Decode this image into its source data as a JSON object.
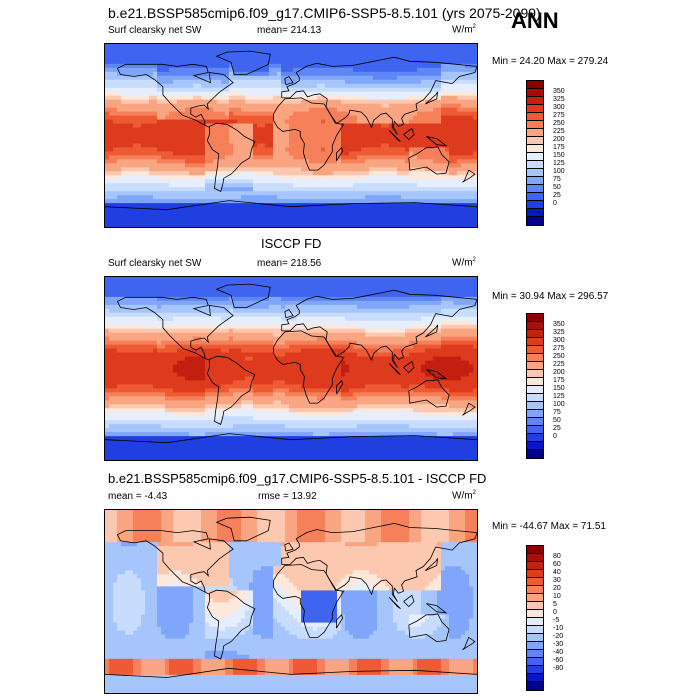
{
  "header": {
    "title": "b.e21.BSSP585cmip6.f09_g17.CMIP6-SSP5-8.5.101 (yrs 2075-2099)",
    "season": "ANN"
  },
  "panels": [
    {
      "left_label": "Surf clearsky net SW",
      "center_label": "mean= 214.13",
      "units": "W/m",
      "units_exp": "2",
      "minmax": "Min =  24.20 Max = 279.24",
      "colors": [
        "#00008f",
        "#0018c8",
        "#1f3fe0",
        "#3f64f0",
        "#5f86f7",
        "#80a6fb",
        "#a6c5fc",
        "#c8dcfd",
        "#e6eefd",
        "#fde8dc",
        "#fcc8b0",
        "#f9a582",
        "#f5805a",
        "#ee5a33",
        "#de3a1d",
        "#c31f11",
        "#a50d06",
        "#8a0000"
      ],
      "ticks": [
        "350",
        "325",
        "300",
        "275",
        "250",
        "225",
        "200",
        "175",
        "150",
        "125",
        "100",
        "75",
        "50",
        "25",
        "0"
      ],
      "field": "model"
    },
    {
      "left_label": "Surf clearsky net SW",
      "center_label": "mean= 218.56",
      "units": "W/m",
      "units_exp": "2",
      "panel_title": "ISCCP FD",
      "minmax": "Min =  30.94 Max = 296.57",
      "colors": [
        "#00008f",
        "#0018c8",
        "#1f3fe0",
        "#3f64f0",
        "#5f86f7",
        "#80a6fb",
        "#a6c5fc",
        "#c8dcfd",
        "#e6eefd",
        "#fde8dc",
        "#fcc8b0",
        "#f9a582",
        "#f5805a",
        "#ee5a33",
        "#de3a1d",
        "#c31f11",
        "#a50d06",
        "#8a0000"
      ],
      "ticks": [
        "350",
        "325",
        "300",
        "275",
        "250",
        "225",
        "200",
        "175",
        "150",
        "125",
        "100",
        "75",
        "50",
        "25",
        "0"
      ],
      "field": "obs"
    },
    {
      "left_label": "mean =  -4.43",
      "center_label": "rmse =  13.92",
      "units": "W/m",
      "units_exp": "2",
      "panel_title": "b.e21.BSSP585cmip6.f09_g17.CMIP6-SSP5-8.5.101 - ISCCP FD",
      "minmax": "Min = -44.67 Max =  71.51",
      "colors": [
        "#00008f",
        "#0018c8",
        "#1f3fe0",
        "#3f64f0",
        "#5f86f7",
        "#80a6fb",
        "#a6c5fc",
        "#c8dcfd",
        "#e6eefd",
        "#fde8dc",
        "#fcc8b0",
        "#f9a582",
        "#f5805a",
        "#ee5a33",
        "#de3a1d",
        "#c31f11",
        "#a50d06",
        "#8a0000"
      ],
      "ticks": [
        "80",
        "60",
        "40",
        "30",
        "20",
        "10",
        "5",
        "0",
        "-5",
        "-10",
        "-20",
        "-30",
        "-40",
        "-60",
        "-80"
      ],
      "field": "diff"
    }
  ]
}
